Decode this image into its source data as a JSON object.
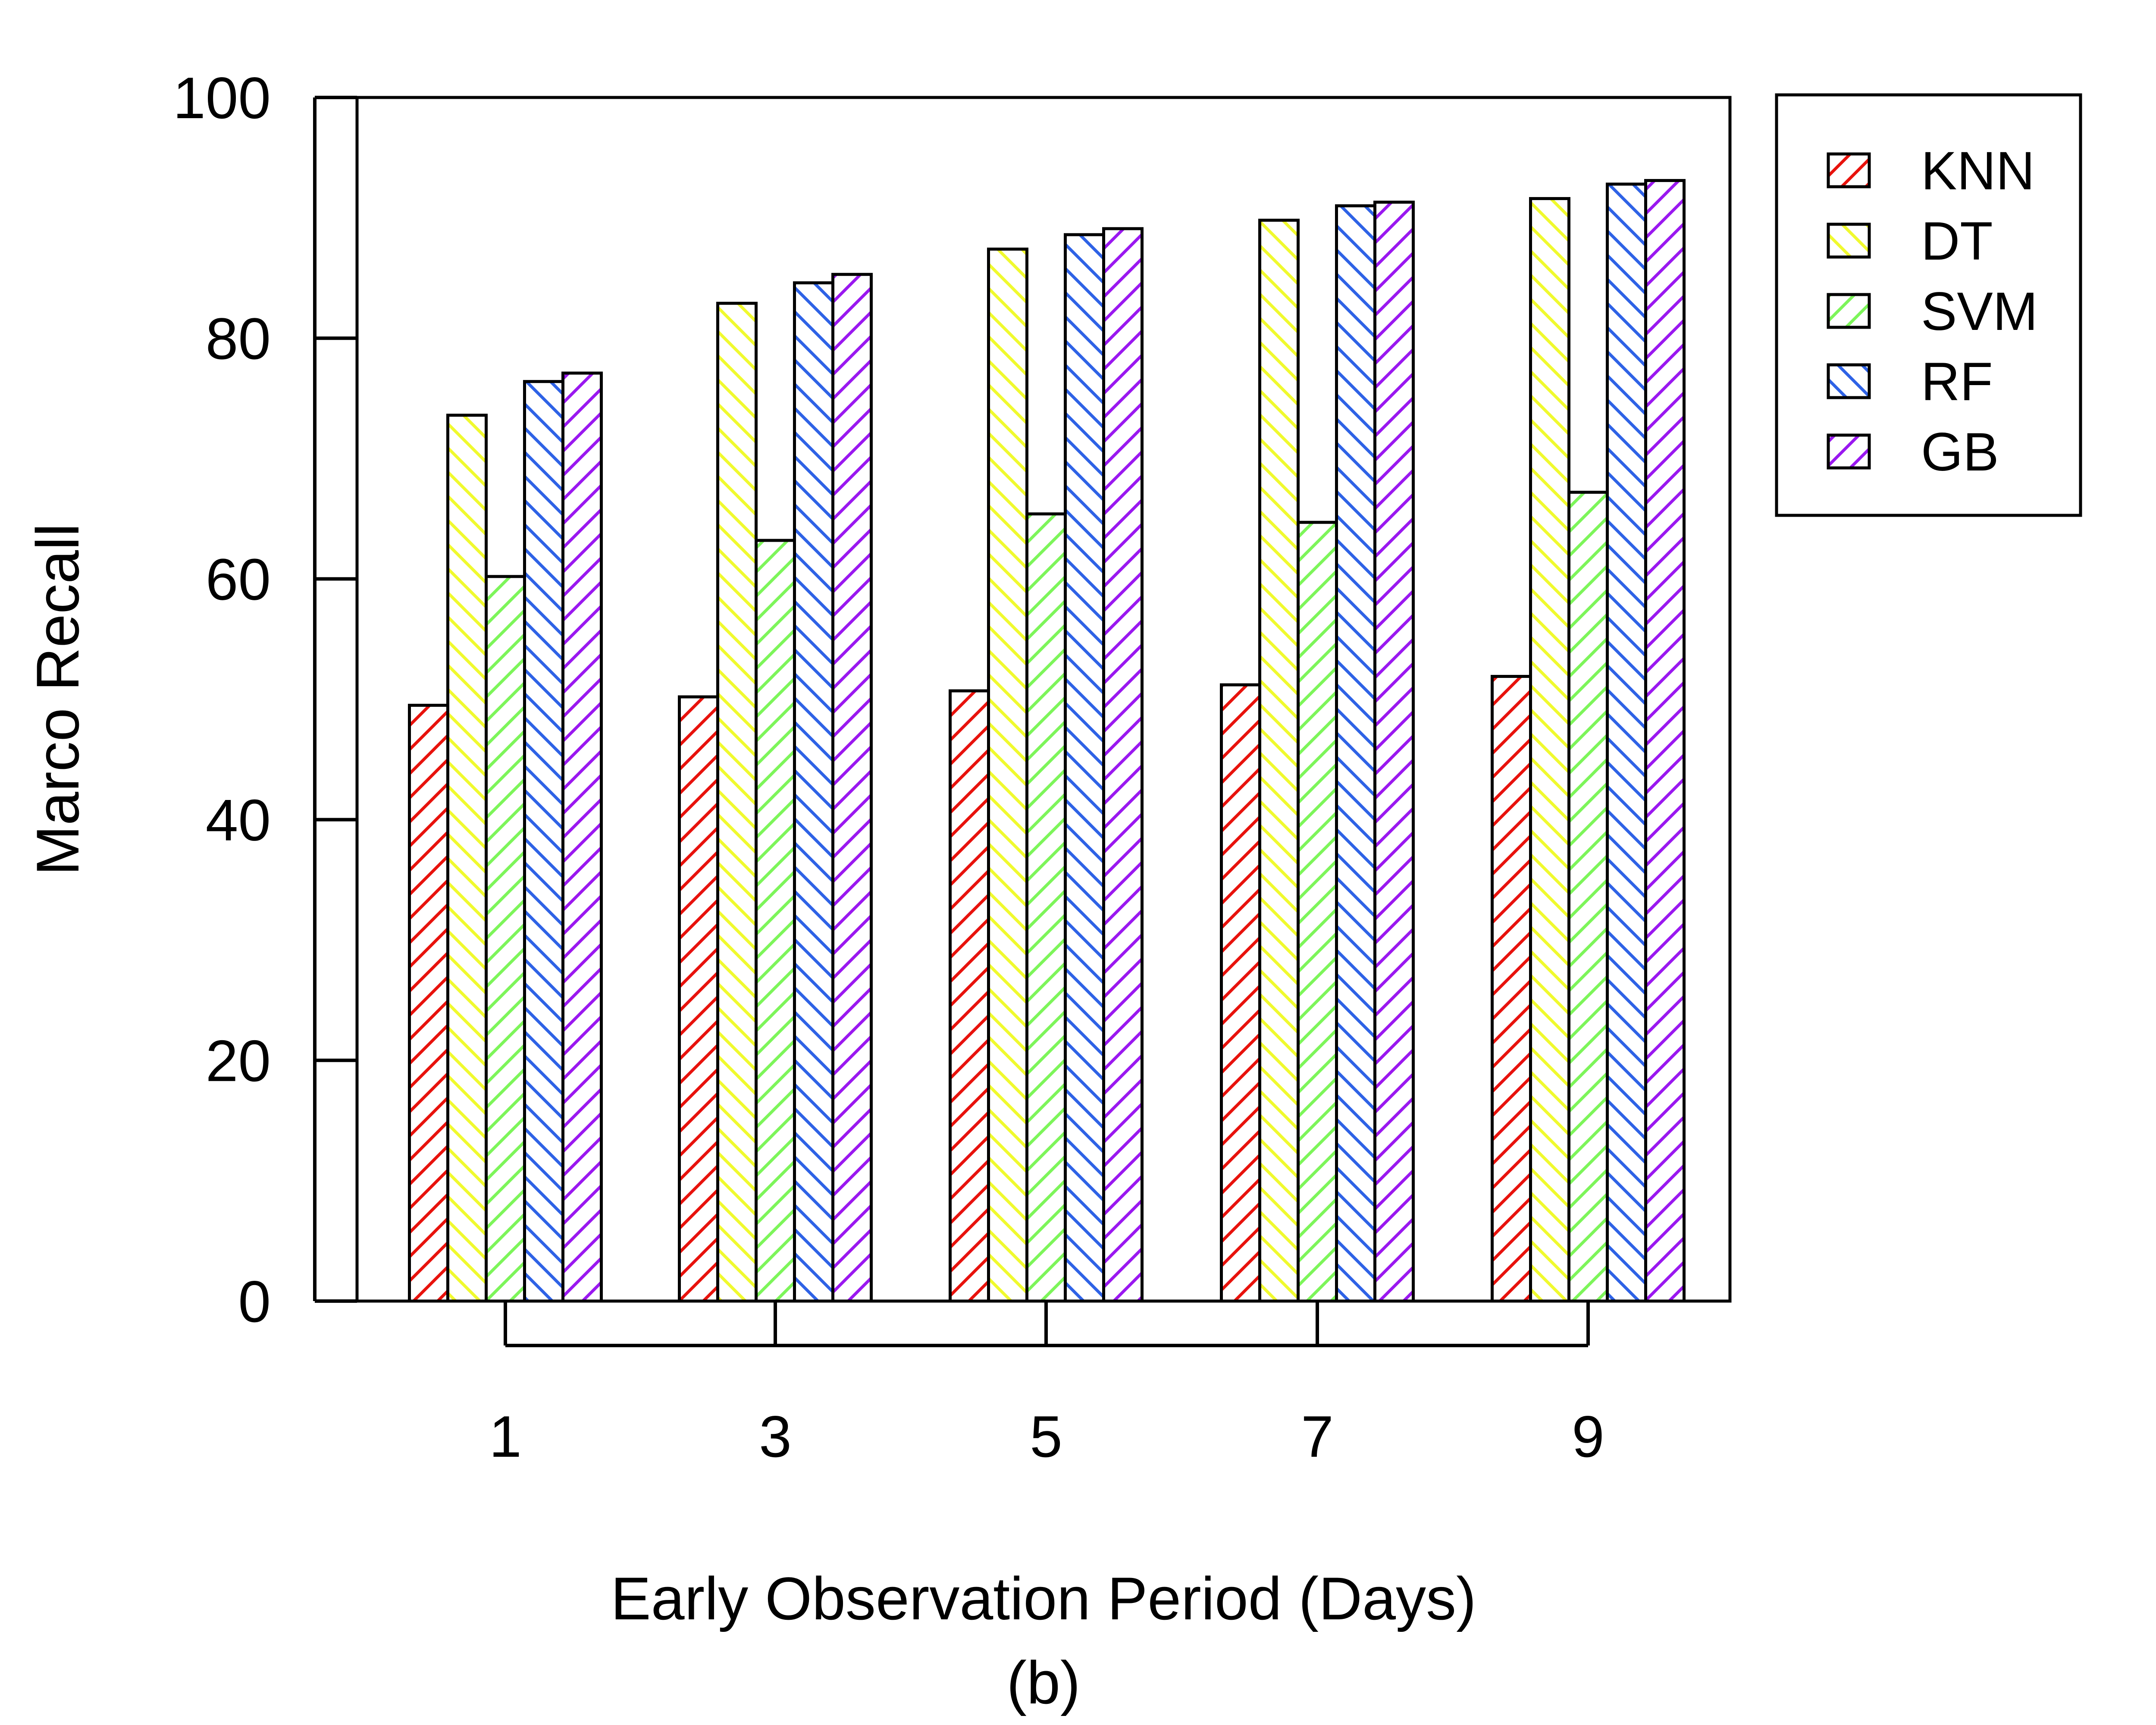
{
  "chart_data": {
    "type": "bar",
    "title": "",
    "caption": "(b)",
    "xlabel": "Early Observation Period (Days)",
    "ylabel": "Marco Recall",
    "ylim": [
      0,
      100
    ],
    "yticks": [
      0,
      20,
      40,
      60,
      80,
      100
    ],
    "categories": [
      "1",
      "3",
      "5",
      "7",
      "9"
    ],
    "fill": "diagonal hatching",
    "grid": false,
    "legend_position": "top-right",
    "series": [
      {
        "name": "KNN",
        "color": "#e8120c",
        "hatch": "forward",
        "values": [
          49.5,
          50.2,
          50.7,
          51.2,
          51.9
        ]
      },
      {
        "name": "DT",
        "color": "#f0fa2e",
        "hatch": "back",
        "values": [
          73.6,
          82.9,
          87.4,
          89.8,
          91.6
        ]
      },
      {
        "name": "SVM",
        "color": "#7df55a",
        "hatch": "forward",
        "values": [
          60.2,
          63.2,
          65.4,
          64.7,
          67.2
        ]
      },
      {
        "name": "RF",
        "color": "#2e62e6",
        "hatch": "back",
        "values": [
          76.4,
          84.6,
          88.6,
          91.0,
          92.8
        ]
      },
      {
        "name": "GB",
        "color": "#9a18f0",
        "hatch": "forward",
        "values": [
          77.1,
          85.3,
          89.1,
          91.3,
          93.1
        ]
      }
    ]
  }
}
